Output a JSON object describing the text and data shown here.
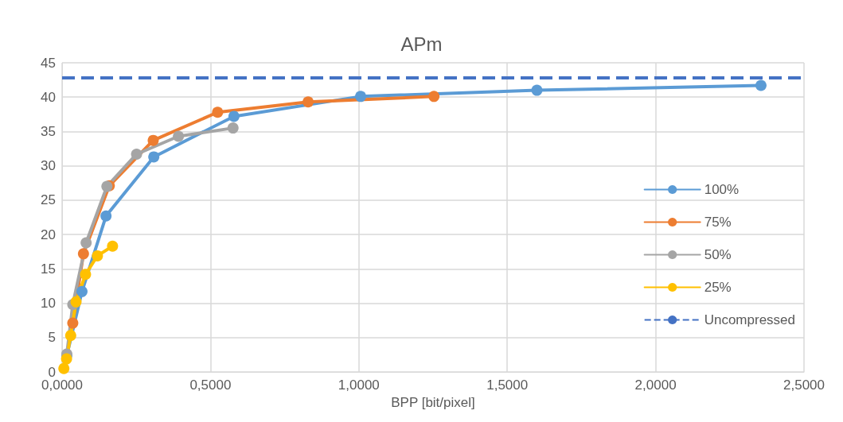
{
  "chart_data": {
    "type": "line",
    "title": "APm",
    "xlabel": "BPP [bit/pixel]",
    "xlim": [
      0,
      2.5
    ],
    "xticks": [
      {
        "value": 0,
        "label": "0,0000"
      },
      {
        "value": 0.5,
        "label": "0,5000"
      },
      {
        "value": 1,
        "label": "1,0000"
      },
      {
        "value": 1.5,
        "label": "1,5000"
      },
      {
        "value": 2,
        "label": "2,0000"
      },
      {
        "value": 2.5,
        "label": "2,5000"
      }
    ],
    "ylim": [
      0,
      45
    ],
    "yticks": [
      0,
      5,
      10,
      15,
      20,
      25,
      30,
      35,
      40,
      45
    ],
    "grid": true,
    "legend": "right",
    "marker": "circle",
    "line_style": "solid",
    "series": [
      {
        "name": "100%",
        "color": "#5b9bd5",
        "x": [
          0.016,
          0.067,
          0.148,
          0.309,
          0.579,
          1.006,
          1.6,
          2.355
        ],
        "values": [
          2.4,
          11.7,
          22.7,
          31.3,
          37.2,
          40.1,
          41.0,
          41.7
        ]
      },
      {
        "name": "75%",
        "color": "#ed7d31",
        "x": [
          0.036,
          0.072,
          0.159,
          0.307,
          0.524,
          0.829,
          1.253
        ],
        "values": [
          7.1,
          17.2,
          27.1,
          33.7,
          37.8,
          39.3,
          40.1
        ]
      },
      {
        "name": "50%",
        "color": "#a5a5a5",
        "x": [
          0.016,
          0.036,
          0.081,
          0.151,
          0.251,
          0.392,
          0.576
        ],
        "values": [
          2.6,
          9.8,
          18.8,
          27.0,
          31.7,
          34.3,
          35.5
        ]
      },
      {
        "name": "25%",
        "color": "#ffc000",
        "x": [
          0.006,
          0.015,
          0.029,
          0.047,
          0.079,
          0.119,
          0.17
        ],
        "values": [
          0.5,
          1.9,
          5.3,
          10.2,
          14.2,
          16.9,
          18.3
        ]
      }
    ],
    "ref_lines": [
      {
        "axis": "y",
        "value": 42.8,
        "label": "Uncompressed",
        "color": "#4472c4",
        "line_style": "dashed"
      }
    ]
  }
}
